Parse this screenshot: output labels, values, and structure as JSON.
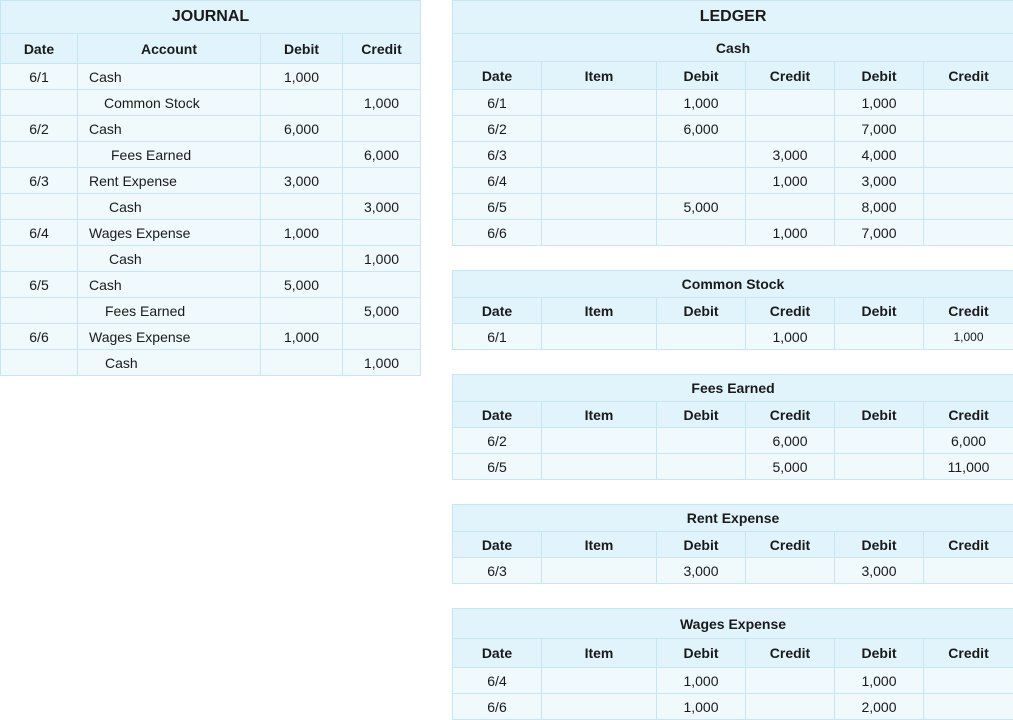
{
  "journal": {
    "title": "JOURNAL",
    "headers": [
      "Date",
      "Account",
      "Debit",
      "Credit"
    ],
    "rows": [
      {
        "date": "6/1",
        "account": "Cash",
        "debit": "1,000",
        "credit": ""
      },
      {
        "date": "",
        "account": "Common Stock",
        "debit": "",
        "credit": "1,000"
      },
      {
        "date": "6/2",
        "account": "Cash",
        "debit": "6,000",
        "credit": ""
      },
      {
        "date": "",
        "account": "Fees Earned",
        "debit": "",
        "credit": "6,000"
      },
      {
        "date": "6/3",
        "account": "Rent Expense",
        "debit": "3,000",
        "credit": ""
      },
      {
        "date": "",
        "account": "Cash",
        "debit": "",
        "credit": "3,000"
      },
      {
        "date": "6/4",
        "account": "Wages Expense",
        "debit": "1,000",
        "credit": ""
      },
      {
        "date": "",
        "account": "Cash",
        "debit": "",
        "credit": "1,000"
      },
      {
        "date": "6/5",
        "account": "Cash",
        "debit": "5,000",
        "credit": ""
      },
      {
        "date": "",
        "account": "Fees Earned",
        "debit": "",
        "credit": "5,000"
      },
      {
        "date": "6/6",
        "account": "Wages Expense",
        "debit": "1,000",
        "credit": ""
      },
      {
        "date": "",
        "account": "Cash",
        "debit": "",
        "credit": "1,000"
      }
    ]
  },
  "ledger": {
    "title": "LEDGER",
    "headers": [
      "Date",
      "Item",
      "Debit",
      "Credit",
      "Debit",
      "Credit"
    ],
    "accounts": [
      {
        "name": "Cash",
        "rows": [
          {
            "date": "6/1",
            "item": "",
            "debit": "1,000",
            "credit": "",
            "bal_debit": "1,000",
            "bal_credit": ""
          },
          {
            "date": "6/2",
            "item": "",
            "debit": "6,000",
            "credit": "",
            "bal_debit": "7,000",
            "bal_credit": ""
          },
          {
            "date": "6/3",
            "item": "",
            "debit": "",
            "credit": "3,000",
            "bal_debit": "4,000",
            "bal_credit": ""
          },
          {
            "date": "6/4",
            "item": "",
            "debit": "",
            "credit": "1,000",
            "bal_debit": "3,000",
            "bal_credit": ""
          },
          {
            "date": "6/5",
            "item": "",
            "debit": "5,000",
            "credit": "",
            "bal_debit": "8,000",
            "bal_credit": ""
          },
          {
            "date": "6/6",
            "item": "",
            "debit": "",
            "credit": "1,000",
            "bal_debit": "7,000",
            "bal_credit": ""
          }
        ]
      },
      {
        "name": "Common Stock",
        "rows": [
          {
            "date": "6/1",
            "item": "",
            "debit": "",
            "credit": "1,000",
            "bal_debit": "",
            "bal_credit": "1,000"
          }
        ]
      },
      {
        "name": "Fees Earned",
        "rows": [
          {
            "date": "6/2",
            "item": "",
            "debit": "",
            "credit": "6,000",
            "bal_debit": "",
            "bal_credit": "6,000"
          },
          {
            "date": "6/5",
            "item": "",
            "debit": "",
            "credit": "5,000",
            "bal_debit": "",
            "bal_credit": "11,000"
          }
        ]
      },
      {
        "name": "Rent Expense",
        "rows": [
          {
            "date": "6/3",
            "item": "",
            "debit": "3,000",
            "credit": "",
            "bal_debit": "3,000",
            "bal_credit": ""
          }
        ]
      },
      {
        "name": "Wages Expense",
        "rows": [
          {
            "date": "6/4",
            "item": "",
            "debit": "1,000",
            "credit": "",
            "bal_debit": "1,000",
            "bal_credit": ""
          },
          {
            "date": "6/6",
            "item": "",
            "debit": "1,000",
            "credit": "",
            "bal_debit": "2,000",
            "bal_credit": ""
          }
        ]
      }
    ]
  }
}
